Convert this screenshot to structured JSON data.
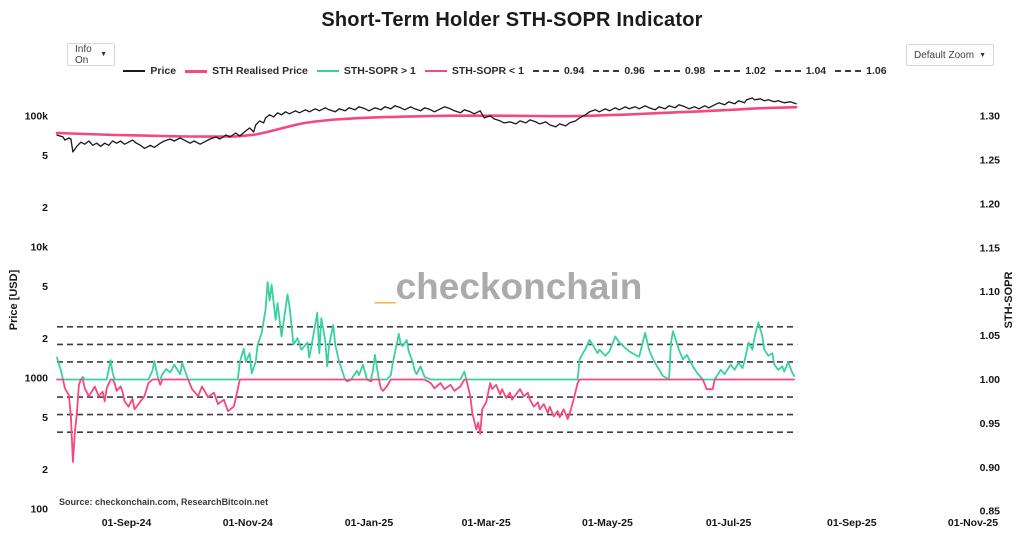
{
  "header": {
    "title": "Short-Term Holder STH-SOPR Indicator"
  },
  "controls": {
    "info_dropdown": {
      "label": "Info On",
      "caret": "▼"
    },
    "zoom_dropdown": {
      "label": "Default Zoom",
      "caret": "▼"
    }
  },
  "legend": {
    "items": [
      {
        "label": "Price",
        "color": "#1a1a1a",
        "style": "solid",
        "weight": 2
      },
      {
        "label": "STH Realised Price",
        "color": "#f3497d",
        "style": "solid",
        "weight": 3
      },
      {
        "label": "STH-SOPR > 1",
        "color": "#3ad29c",
        "style": "solid",
        "weight": 2
      },
      {
        "label": "STH-SOPR < 1",
        "color": "#f3497d",
        "style": "solid",
        "weight": 2
      },
      {
        "label": "0.94",
        "color": "#3b3b3b",
        "style": "dashed",
        "weight": 2
      },
      {
        "label": "0.96",
        "color": "#3b3b3b",
        "style": "dashed",
        "weight": 2
      },
      {
        "label": "0.98",
        "color": "#3b3b3b",
        "style": "dashed",
        "weight": 2
      },
      {
        "label": "1.02",
        "color": "#3b3b3b",
        "style": "dashed",
        "weight": 2
      },
      {
        "label": "1.04",
        "color": "#3b3b3b",
        "style": "dashed",
        "weight": 2
      },
      {
        "label": "1.06",
        "color": "#3b3b3b",
        "style": "dashed",
        "weight": 2
      }
    ]
  },
  "watermark": {
    "underscore": "_",
    "text": "checkonchain",
    "underscore_color": "#f9a63d",
    "text_color": "#ababab"
  },
  "source_note": "Source: checkonchain.com, ResearchBitcoin.net",
  "axes": {
    "left": {
      "title": "Price [USD]",
      "ticks": [
        {
          "v": 100,
          "label": "100"
        },
        {
          "v": 200,
          "label": "2"
        },
        {
          "v": 500,
          "label": "5"
        },
        {
          "v": 1000,
          "label": "1000"
        },
        {
          "v": 2000,
          "label": "2"
        },
        {
          "v": 5000,
          "label": "5"
        },
        {
          "v": 10000,
          "label": "10k"
        },
        {
          "v": 20000,
          "label": "2"
        },
        {
          "v": 50000,
          "label": "5"
        },
        {
          "v": 100000,
          "label": "100k"
        }
      ]
    },
    "right": {
      "title": "STH-SOPR",
      "ticks": [
        {
          "v": 0.85,
          "label": "0.85"
        },
        {
          "v": 0.9,
          "label": "0.90"
        },
        {
          "v": 0.95,
          "label": "0.95"
        },
        {
          "v": 1.0,
          "label": "1.00"
        },
        {
          "v": 1.05,
          "label": "1.05"
        },
        {
          "v": 1.1,
          "label": "1.10"
        },
        {
          "v": 1.15,
          "label": "1.15"
        },
        {
          "v": 1.2,
          "label": "1.20"
        },
        {
          "v": 1.25,
          "label": "1.25"
        },
        {
          "v": 1.3,
          "label": "1.30"
        }
      ]
    },
    "x": {
      "start_date": "2024-07-28",
      "ticks": [
        {
          "day": 35,
          "label": "01-Sep-24"
        },
        {
          "day": 96,
          "label": "01-Nov-24"
        },
        {
          "day": 157,
          "label": "01-Jan-25"
        },
        {
          "day": 216,
          "label": "01-Mar-25"
        },
        {
          "day": 277,
          "label": "01-May-25"
        },
        {
          "day": 338,
          "label": "01-Jul-25"
        },
        {
          "day": 400,
          "label": "01-Sep-25"
        },
        {
          "day": 461,
          "label": "01-Nov-25"
        }
      ]
    }
  },
  "chart_data": {
    "type": "line",
    "title": "Short-Term Holder STH-SOPR Indicator",
    "x_unit": "days since 2024-07-28",
    "x_range_days": [
      0,
      461
    ],
    "price_axis": {
      "scale": "log",
      "range": [
        100,
        145000
      ],
      "label": "Price [USD]"
    },
    "sopr_axis": {
      "scale": "linear",
      "range": [
        0.85,
        1.3
      ],
      "label": "STH-SOPR"
    },
    "guides": {
      "baseline": 1.0,
      "baseline_color": "#f3497d",
      "dashed_levels": [
        0.94,
        0.96,
        0.98,
        1.02,
        1.04,
        1.06
      ],
      "dashed_color": "#3f3f3f",
      "span_days": [
        0,
        372.5
      ]
    },
    "series": [
      {
        "name": "Price",
        "axis": "price",
        "color": "#1a1a1a",
        "x": [
          0,
          3,
          4,
          6,
          7,
          8,
          10,
          12,
          14,
          16,
          18,
          20,
          22,
          24,
          26,
          28,
          30,
          32,
          34,
          36,
          38,
          40,
          42,
          44,
          47,
          49,
          52,
          54,
          57,
          59,
          62,
          64,
          67,
          69,
          72,
          74,
          77,
          80,
          82,
          85,
          87,
          90,
          92,
          95,
          97,
          99,
          100,
          102,
          104,
          105,
          107,
          109,
          111,
          113,
          115,
          117,
          120,
          122,
          125,
          127,
          130,
          132,
          135,
          137,
          140,
          142,
          145,
          147,
          150,
          152,
          155,
          157,
          160,
          163,
          165,
          168,
          170,
          173,
          175,
          178,
          180,
          183,
          185,
          188,
          190,
          193,
          195,
          198,
          200,
          203,
          205,
          208,
          210,
          213,
          215,
          218,
          220,
          223,
          225,
          228,
          231,
          233,
          236,
          238,
          241,
          243,
          246,
          248,
          251,
          253,
          256,
          258,
          261,
          263,
          266,
          268,
          271,
          273,
          276,
          278,
          281,
          283,
          286,
          288,
          291,
          293,
          296,
          298,
          301,
          303,
          306,
          308,
          311,
          313,
          316,
          318,
          321,
          323,
          326,
          328,
          331,
          333,
          336,
          338,
          341,
          343,
          346,
          347,
          350,
          351,
          354,
          356,
          358,
          361,
          363,
          366,
          369,
          372
        ],
        "y": [
          71600,
          69100,
          65500,
          67900,
          66700,
          53100,
          58700,
          63100,
          60900,
          64400,
          59700,
          62000,
          58700,
          62000,
          59700,
          64400,
          62000,
          64400,
          60900,
          63100,
          65500,
          62000,
          59700,
          56600,
          59700,
          57600,
          62000,
          64400,
          66700,
          64400,
          67900,
          65500,
          62000,
          64400,
          60900,
          63100,
          66700,
          69100,
          66700,
          71600,
          69100,
          74200,
          70300,
          76900,
          81100,
          75500,
          85500,
          91800,
          88600,
          96800,
          102100,
          98500,
          105700,
          102100,
          107600,
          103900,
          109500,
          105700,
          111500,
          107600,
          113500,
          109500,
          115500,
          111500,
          107600,
          113500,
          109500,
          115500,
          111500,
          117600,
          113500,
          109500,
          115500,
          111500,
          117600,
          113500,
          119700,
          115500,
          111500,
          117600,
          113500,
          109500,
          115500,
          111500,
          107600,
          113500,
          117600,
          113500,
          109500,
          105700,
          111500,
          107600,
          103900,
          109500,
          96800,
          100300,
          95100,
          91800,
          88600,
          90200,
          87000,
          91800,
          88600,
          93400,
          90200,
          87000,
          90200,
          85500,
          82500,
          87000,
          84000,
          88600,
          91800,
          96800,
          102100,
          107600,
          111500,
          107600,
          113500,
          109500,
          115500,
          111500,
          117600,
          113500,
          117600,
          113500,
          119700,
          115500,
          111500,
          117600,
          113500,
          119700,
          115500,
          121800,
          117600,
          113500,
          117600,
          113500,
          119700,
          115500,
          121800,
          126200,
          121800,
          128400,
          124000,
          130700,
          126200,
          133000,
          137300,
          133000,
          135400,
          130700,
          133000,
          128400,
          130700,
          126200,
          128400,
          124000
        ]
      },
      {
        "name": "STH Realised Price",
        "axis": "price",
        "color": "#f3497d",
        "x": [
          0,
          7,
          14,
          22,
          29,
          37,
          44,
          52,
          59,
          67,
          74,
          82,
          90,
          95,
          100,
          105,
          110,
          115,
          120,
          125,
          130,
          135,
          140,
          145,
          150,
          155,
          160,
          165,
          170,
          175,
          180,
          185,
          190,
          195,
          200,
          210,
          220,
          230,
          240,
          248,
          253,
          258,
          263,
          268,
          273,
          278,
          283,
          288,
          293,
          298,
          303,
          308,
          313,
          318,
          323,
          328,
          333,
          338,
          343,
          348,
          353,
          358,
          363,
          368,
          372
        ],
        "y": [
          74200,
          73500,
          72900,
          72300,
          71600,
          71200,
          70800,
          70300,
          70000,
          69700,
          69600,
          69600,
          69900,
          70800,
          72300,
          74900,
          78300,
          81800,
          85500,
          88600,
          90800,
          92400,
          94000,
          95100,
          96100,
          96900,
          97500,
          98000,
          98500,
          99000,
          99300,
          99600,
          100000,
          100300,
          100500,
          100500,
          100500,
          100400,
          100000,
          99700,
          99600,
          99700,
          100000,
          100400,
          101000,
          101600,
          102200,
          102900,
          103600,
          104400,
          105200,
          106000,
          106900,
          107700,
          108500,
          109400,
          110300,
          111200,
          112300,
          113400,
          114400,
          115100,
          115800,
          116300,
          116700
        ]
      },
      {
        "name": "STH-SOPR",
        "axis": "sopr",
        "color_above": "#3ad29c",
        "color_below": "#f3497d",
        "split_at": 1.0,
        "x": [
          0,
          2,
          3,
          4,
          6,
          7,
          8,
          9,
          10,
          11,
          12,
          13,
          14,
          16,
          18,
          19,
          21,
          23,
          24,
          25,
          27,
          28,
          29,
          30,
          32,
          33,
          34,
          36,
          38,
          39,
          41,
          43,
          44,
          46,
          48,
          49,
          51,
          52,
          53,
          55,
          57,
          59,
          62,
          63,
          66,
          68,
          71,
          73,
          76,
          79,
          81,
          84,
          86,
          89,
          91,
          92,
          94,
          95,
          97,
          98,
          100,
          101,
          103,
          105,
          106,
          107,
          108,
          110,
          111,
          113,
          116,
          117,
          119,
          121,
          123,
          126,
          127,
          129,
          131,
          132,
          133,
          135,
          136,
          137,
          139,
          140,
          142,
          145,
          146,
          148,
          151,
          152,
          154,
          156,
          158,
          159,
          160,
          162,
          163,
          164,
          166,
          168,
          169,
          170,
          172,
          173,
          174,
          176,
          177,
          179,
          180,
          181,
          183,
          185,
          188,
          190,
          193,
          195,
          198,
          200,
          203,
          205,
          206,
          208,
          209,
          211,
          212,
          213,
          214,
          216,
          218,
          219,
          221,
          223,
          224,
          226,
          228,
          229,
          231,
          233,
          235,
          237,
          238,
          240,
          242,
          243,
          245,
          247,
          248,
          250,
          252,
          253,
          255,
          257,
          258,
          260,
          262,
          263,
          266,
          268,
          270,
          272,
          273,
          276,
          278,
          281,
          283,
          286,
          288,
          291,
          293,
          296,
          298,
          300,
          302,
          305,
          308,
          309,
          310,
          313,
          315,
          317,
          320,
          322,
          325,
          327,
          330,
          331,
          334,
          336,
          339,
          341,
          343,
          345,
          346,
          348,
          350,
          351,
          352,
          353,
          355,
          356,
          358,
          360,
          361,
          363,
          365,
          366,
          368,
          370,
          371
        ],
        "y": [
          1.025,
          1.01,
          1.0,
          0.99,
          0.982,
          0.958,
          0.906,
          0.94,
          0.962,
          0.994,
          1.0,
          1.003,
          0.99,
          0.981,
          0.988,
          0.992,
          0.981,
          0.986,
          0.975,
          0.99,
          1.022,
          1.008,
          0.996,
          0.987,
          0.992,
          0.986,
          0.975,
          0.969,
          0.978,
          0.966,
          0.972,
          0.978,
          0.981,
          0.996,
          1.01,
          1.021,
          1.0,
          0.994,
          1.006,
          1.012,
          1.008,
          1.017,
          1.006,
          1.019,
          1.0,
          0.989,
          0.981,
          0.992,
          0.98,
          0.985,
          0.972,
          0.977,
          0.964,
          0.969,
          0.989,
          1.02,
          1.035,
          1.02,
          1.03,
          1.007,
          1.02,
          1.04,
          1.053,
          1.08,
          1.111,
          1.09,
          1.108,
          1.068,
          1.087,
          1.049,
          1.097,
          1.083,
          1.04,
          1.047,
          1.034,
          1.042,
          1.025,
          1.05,
          1.076,
          1.03,
          1.07,
          1.045,
          1.015,
          1.04,
          1.062,
          1.04,
          1.02,
          1.0,
          0.998,
          1.0,
          1.01,
          1.005,
          1.017,
          1.0,
          0.998,
          1.01,
          1.028,
          1.0,
          0.99,
          0.987,
          0.992,
          1.005,
          1.019,
          1.03,
          1.052,
          1.04,
          1.038,
          1.045,
          1.032,
          1.02,
          1.01,
          1.006,
          1.015,
          1.003,
          0.996,
          0.99,
          0.996,
          0.989,
          0.994,
          0.987,
          0.992,
          1.009,
          1.0,
          0.981,
          0.962,
          0.943,
          0.951,
          0.938,
          0.966,
          0.974,
          0.996,
          0.989,
          0.994,
          0.983,
          0.989,
          0.979,
          0.985,
          0.977,
          0.983,
          0.989,
          0.981,
          0.985,
          0.977,
          0.969,
          0.974,
          0.966,
          0.972,
          0.962,
          0.969,
          0.958,
          0.964,
          0.957,
          0.966,
          0.955,
          0.961,
          0.977,
          0.996,
          1.023,
          1.035,
          1.045,
          1.038,
          1.03,
          1.034,
          1.027,
          1.032,
          1.049,
          1.042,
          1.036,
          1.032,
          1.028,
          1.026,
          1.053,
          1.034,
          1.023,
          1.015,
          1.004,
          1.0,
          1.042,
          1.055,
          1.034,
          1.023,
          1.028,
          1.015,
          1.008,
          1.0,
          0.989,
          0.989,
          1.0,
          1.011,
          1.006,
          1.017,
          1.011,
          1.019,
          1.013,
          1.021,
          1.042,
          1.034,
          1.047,
          1.057,
          1.065,
          1.049,
          1.034,
          1.027,
          1.03,
          1.017,
          1.011,
          1.015,
          1.009,
          1.02,
          1.008,
          1.004
        ]
      }
    ]
  }
}
